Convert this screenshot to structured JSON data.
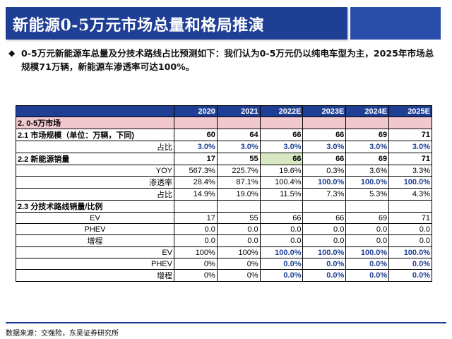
{
  "title": "新能源0-5万元市场总量和格局推演",
  "bullet": "0-5万元新能源车总量及分技术路线占比预测如下：我们认为0-5万元仍以纯电车型为主，2025年市场总规模71万辆，新能源车渗透率可达100%。",
  "table": {
    "headers": [
      "",
      "2020",
      "2021",
      "2022E",
      "2023E",
      "2024E",
      "2025E"
    ],
    "section1": "2. 0-5万市场",
    "row_market": {
      "label": "2.1 市场规模（单位：万辆，下同)",
      "values": [
        "60",
        "64",
        "66",
        "66",
        "69",
        "71"
      ]
    },
    "row_market_share": {
      "label": "占比",
      "values": [
        "3.0%",
        "3.0%",
        "3.0%",
        "3.0%",
        "3.0%",
        "3.0%"
      ]
    },
    "row_nev": {
      "label": "2.2 新能源销量",
      "values": [
        "17",
        "55",
        "66",
        "66",
        "69",
        "71"
      ]
    },
    "row_yoy": {
      "label": "YOY",
      "values": [
        "567.3%",
        "225.7%",
        "19.6%",
        "0.3%",
        "3.6%",
        "3.3%"
      ]
    },
    "row_pen": {
      "label": "渗透率",
      "values": [
        "28.4%",
        "87.1%",
        "100.4%",
        "100.0%",
        "100.0%",
        "100.0%"
      ]
    },
    "row_nev_share": {
      "label": "占比",
      "values": [
        "14.9%",
        "19.0%",
        "11.5%",
        "7.3%",
        "5.3%",
        "4.3%"
      ]
    },
    "section3": "2.3 分技术路线销量/比例",
    "row_ev": {
      "label": "EV",
      "values": [
        "17",
        "55",
        "66",
        "66",
        "69",
        "71"
      ]
    },
    "row_phev": {
      "label": "PHEV",
      "values": [
        "0.0",
        "0.0",
        "0.0",
        "0.0",
        "0.0",
        "0.0"
      ]
    },
    "row_erev": {
      "label": "增程",
      "values": [
        "0.0",
        "0.0",
        "0.0",
        "0.0",
        "0.0",
        "0.0"
      ]
    },
    "row_ev_pct": {
      "label": "EV",
      "values": [
        "100%",
        "100%",
        "100.0%",
        "100.0%",
        "100.0%",
        "100.0%"
      ]
    },
    "row_phev_pct": {
      "label": "PHEV",
      "values": [
        "0%",
        "0%",
        "0.0%",
        "0.0%",
        "0.0%",
        "0.0%"
      ]
    },
    "row_erev_pct": {
      "label": "增程",
      "values": [
        "0%",
        "0%",
        "0.0%",
        "0.0%",
        "0.0%",
        "0.0%"
      ]
    }
  },
  "footer": "数据来源：交强险，东吴证券研究所"
}
